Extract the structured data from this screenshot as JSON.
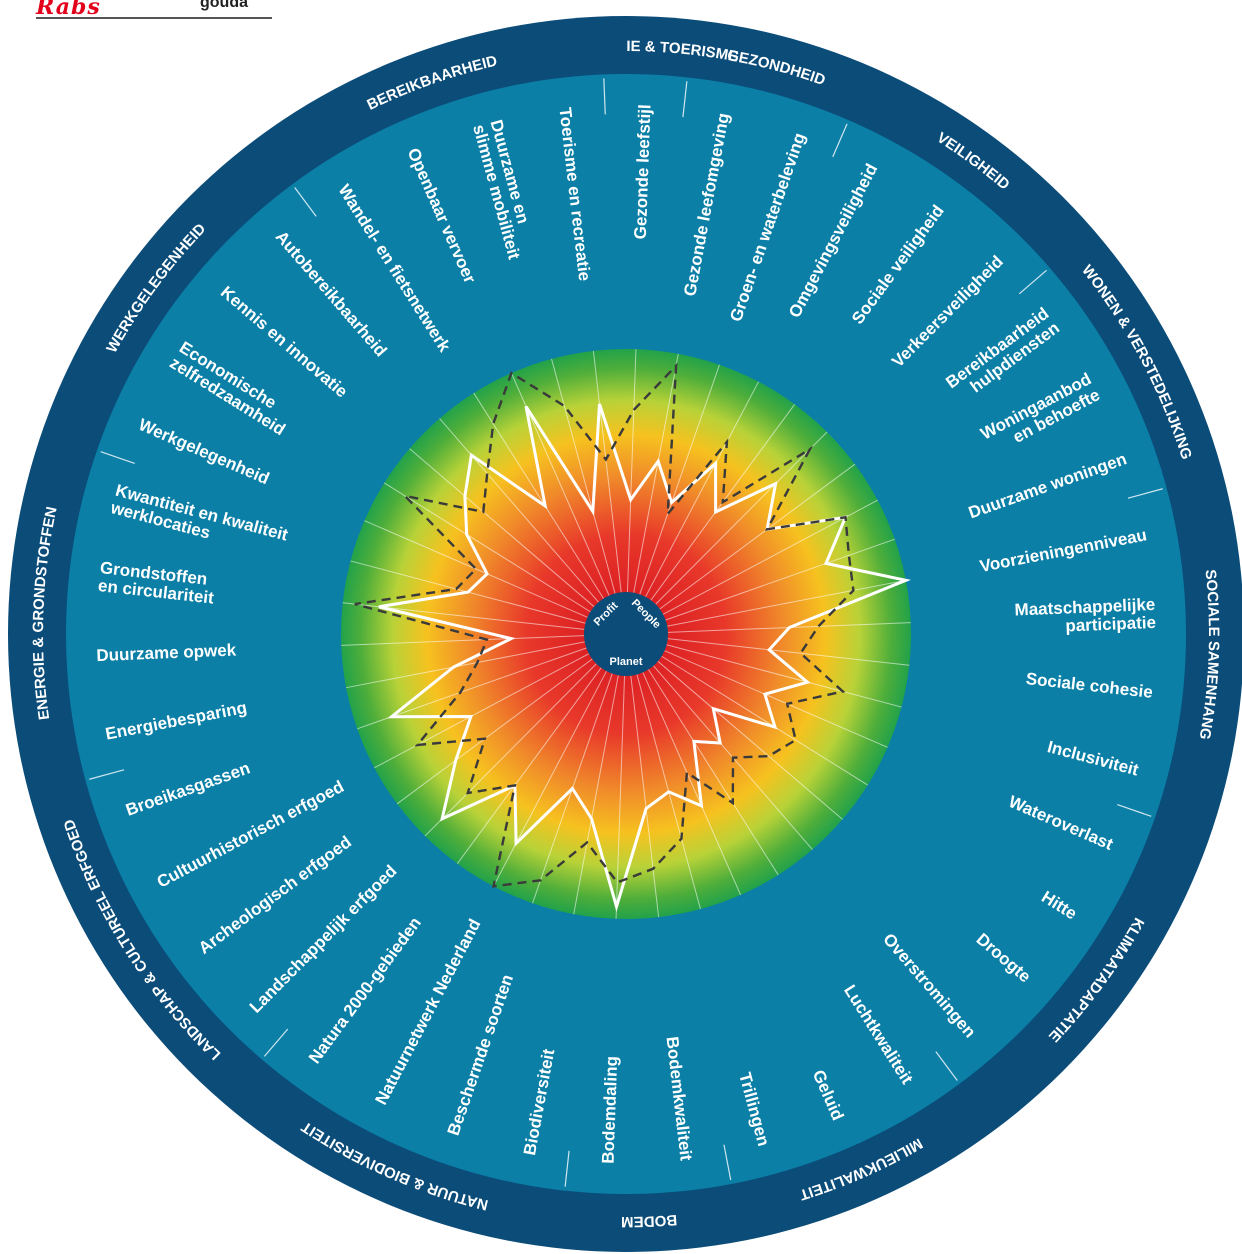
{
  "header": {
    "logo_text": "Rabs",
    "org_text": "gouda"
  },
  "colors": {
    "outer_ring": "#0b4c79",
    "inner_disc": "#0b7fa6",
    "center": "#0b4c79",
    "gradient": [
      "#d4101f",
      "#e8382a",
      "#f08a2a",
      "#f6c21f",
      "#b8d238",
      "#4fae3a",
      "#22a24a"
    ],
    "current_line": "#ffffff",
    "target_line": "#3a3a3a"
  },
  "center_labels": [
    "Profit",
    "People",
    "Planet"
  ],
  "themes": [
    {
      "label": "RECREATIE &\nTOERISME"
    },
    {
      "label": "GEZONDHEID"
    },
    {
      "label": "VEILIGHEID"
    },
    {
      "label": "WONEN &\nVERSTEDELIJKING"
    },
    {
      "label": "SOCIALE SAMENHANG"
    },
    {
      "label": "KLIMAATADAPTATIE"
    },
    {
      "label": "MILIEUKWALITEIT"
    },
    {
      "label": "BODEM"
    },
    {
      "label": "NATUUR & BIODIVERSITEIT"
    },
    {
      "label": "LANDSCHAP & CULTUREEL\nERFGOED"
    },
    {
      "label": "ENERGIE &\nGRONDSTOFFEN"
    },
    {
      "label": "WERKGELEGENHEID"
    },
    {
      "label": "BEREIKBAARHEID"
    }
  ],
  "chart_data": {
    "type": "radar",
    "title": "",
    "categories": [
      "Gezonde leefstijl",
      "Gezonde leefomgeving",
      "Groen- en waterbeleving",
      "Omgevingsveiligheid",
      "Sociale veiligheid",
      "Verkeersveiligheid",
      "Bereikbaarheid\nhulpdiensten",
      "Woningaanbod\nen behoefte",
      "Duurzame woningen",
      "Voorzieningenniveau",
      "Maatschappelijke\nparticipatie",
      "Sociale cohesie",
      "Inclusiviteit",
      "Wateroverlast",
      "Hitte",
      "Droogte",
      "Overstromingen",
      "Luchtkwaliteit",
      "Geluid",
      "Trillingen",
      "Bodemkwaliteit",
      "Bodemdaling",
      "Biodiversiteit",
      "Beschermde soorten",
      "Natuurnetwerk Nederland",
      "Natura 2000-gebieden",
      "Landschappelijk erfgoed",
      "Archeologisch erfgoed",
      "Cultuurhistorisch erfgoed",
      "Broeikasgassen",
      "Energiebesparing",
      "Duurzame opwek",
      "Grondstoffen\nen circulariteit",
      "Kwantiteit en kwaliteit\nwerklocaties",
      "Werkgelegenheid",
      "Economische\nzelfredzaamheid",
      "Kennis en innovatie",
      "Autobereikbaarheid",
      "Wandel- en fietsnetwerk",
      "Openbaar vervoer",
      "Duurzame en\nslimme mobiliteit",
      "Toerisme en recreatie"
    ],
    "series": [
      {
        "values": [
          0.38,
          0.55,
          0.4,
          0.62,
          0.45,
          0.7,
          0.55,
          0.85,
          0.7,
          1.0,
          0.5,
          0.42,
          0.6,
          0.45,
          0.55,
          0.3,
          0.42,
          0.35,
          0.6,
          0.5,
          0.55,
          0.95,
          0.6,
          0.5,
          0.8,
          0.6,
          0.9,
          0.7,
          0.55,
          0.85,
          0.55,
          0.3,
          0.85,
          0.5,
          0.45,
          0.6,
          0.7,
          0.8,
          0.45,
          0.85,
          0.35,
          0.78
        ]
      },
      {
        "values": [
          0.75,
          0.95,
          0.35,
          0.72,
          0.5,
          0.9,
          0.55,
          0.85,
          0.8,
          0.78,
          0.62,
          0.55,
          0.75,
          0.55,
          0.65,
          0.6,
          0.5,
          0.65,
          0.45,
          0.7,
          0.8,
          0.85,
          0.7,
          0.9,
          1.0,
          0.6,
          0.75,
          0.55,
          0.8,
          0.55,
          0.45,
          0.4,
          0.95,
          0.55,
          0.5,
          0.9,
          0.6,
          0.7,
          0.85,
          1.0,
          0.8,
          0.55
        ]
      }
    ],
    "rlim": [
      0,
      1
    ]
  }
}
